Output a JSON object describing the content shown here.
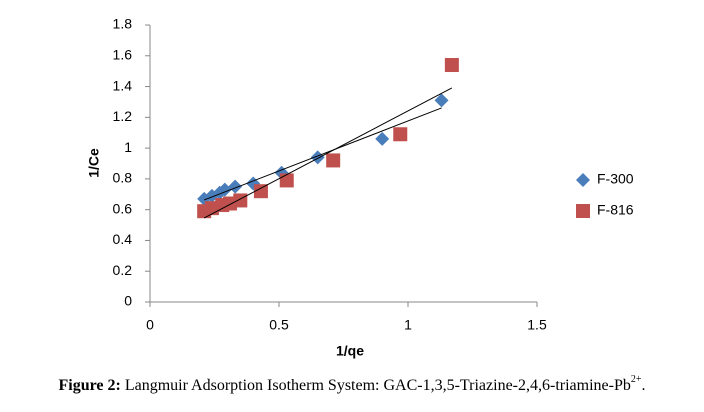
{
  "chart_data": {
    "type": "scatter",
    "x_label": "1/qe",
    "y_label": "1/Ce",
    "xlim": [
      0,
      1.5
    ],
    "xticks": [
      0,
      0.5,
      1,
      1.5
    ],
    "ylim": [
      0,
      1.8
    ],
    "yticks": [
      0,
      0.2,
      0.4,
      0.6,
      0.8,
      1,
      1.2,
      1.4,
      1.6,
      1.8
    ],
    "grid": false,
    "trendline": true,
    "legend": "right",
    "series": [
      {
        "name": "F-300",
        "color": "#4a7ebb",
        "marker": "diamond",
        "x": [
          0.21,
          0.24,
          0.27,
          0.29,
          0.33,
          0.4,
          0.51,
          0.65,
          0.9,
          1.13
        ],
        "values": [
          0.67,
          0.69,
          0.71,
          0.73,
          0.75,
          0.77,
          0.84,
          0.94,
          1.06,
          1.31
        ]
      },
      {
        "name": "F-816",
        "color": "#c0504d",
        "marker": "square",
        "x": [
          0.21,
          0.24,
          0.28,
          0.31,
          0.35,
          0.43,
          0.53,
          0.71,
          0.97,
          1.17
        ],
        "values": [
          0.59,
          0.61,
          0.63,
          0.64,
          0.66,
          0.72,
          0.79,
          0.92,
          1.09,
          1.54
        ]
      }
    ]
  },
  "caption": {
    "label": "Figure 2:",
    "text": "Langmuir Adsorption Isotherm System: GAC-1,3,5-Triazine-2,4,6-triamine-Pb",
    "superscript": "2+",
    "end": "."
  }
}
